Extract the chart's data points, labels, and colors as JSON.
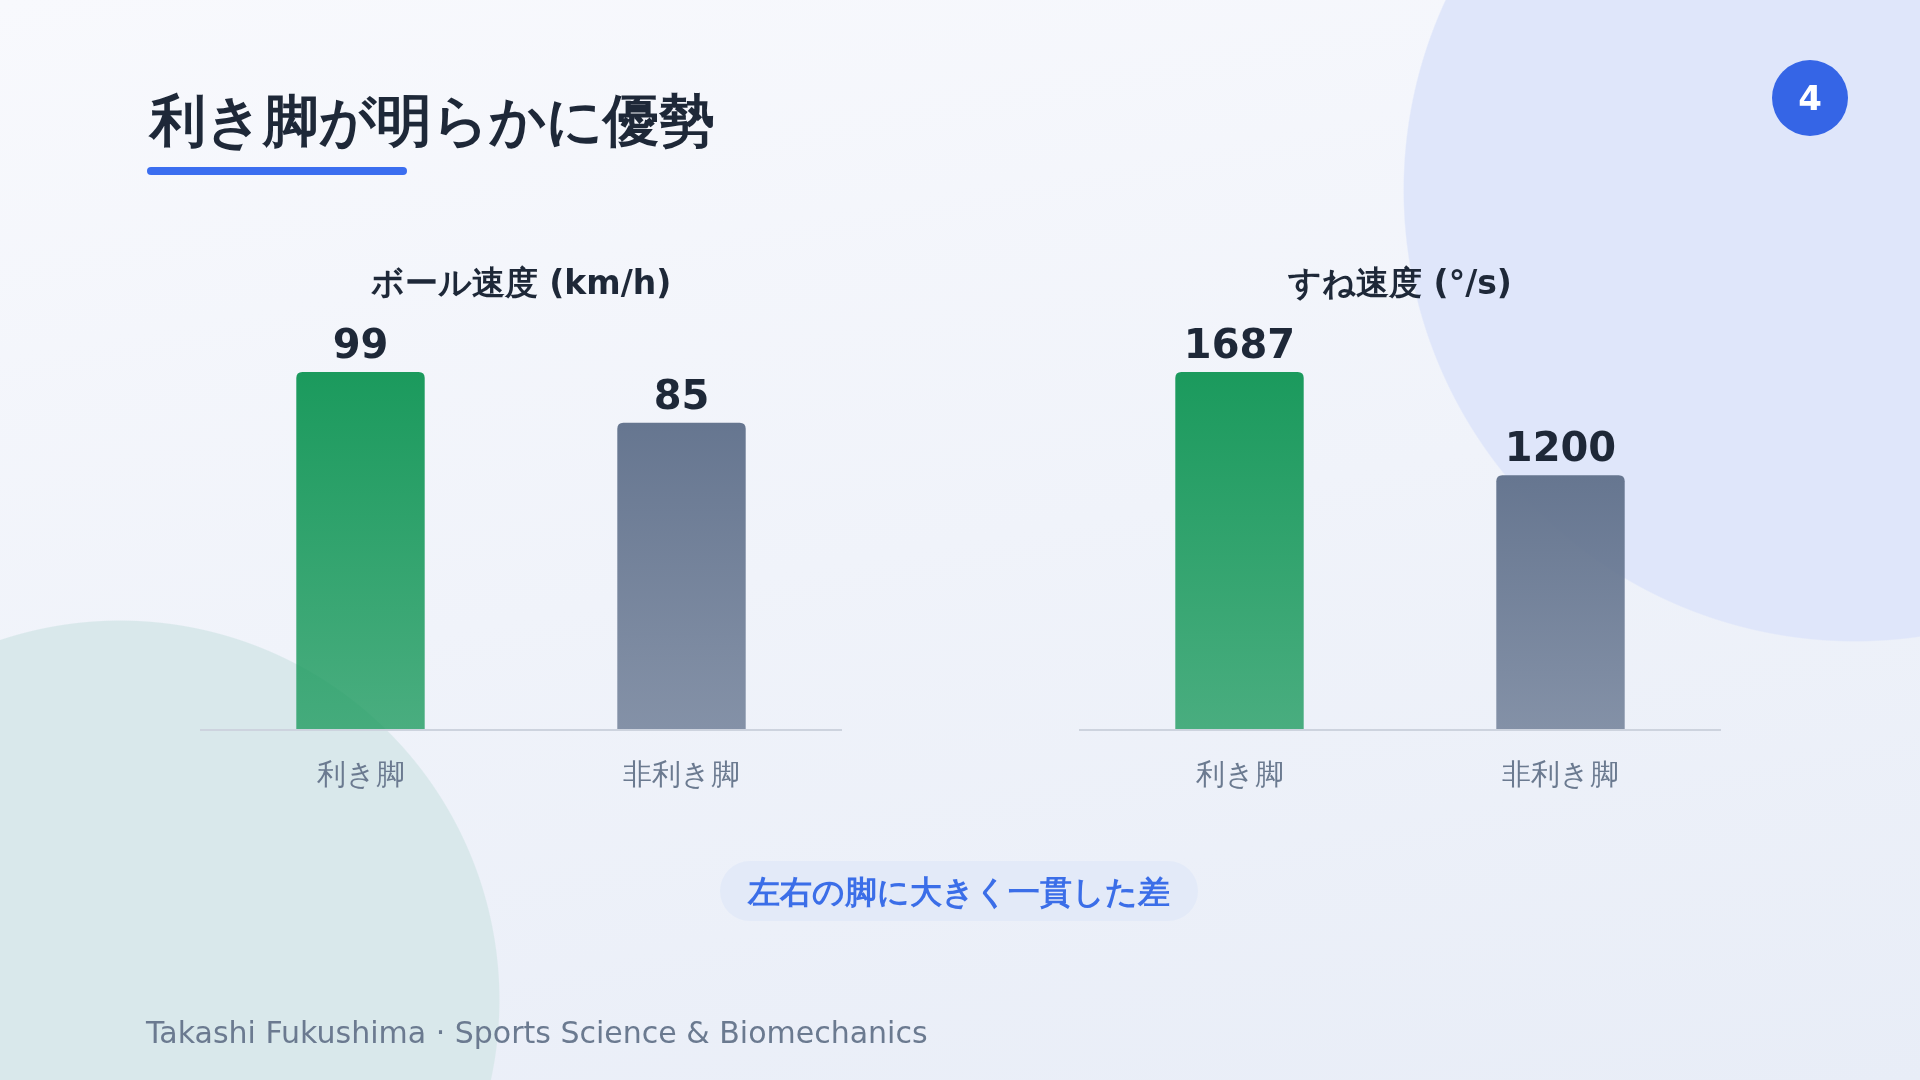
{
  "chart_data": [
    {
      "type": "other",
      "title": "利き脚が明らかに優勢",
      "annotations": [
        "4",
        "左右の脚に大きく一貫した差",
        "Takashi Fukushima · Sports Science & Biomechanics"
      ]
    },
    {
      "type": "bar",
      "title": "ボール速度 (km/h)",
      "categories": [
        "利き脚",
        "非利き脚"
      ],
      "values": [
        99,
        85
      ],
      "colors": [
        "#1b9a5d",
        "#667690"
      ],
      "data_labels": true
    },
    {
      "type": "bar",
      "title": "すね速度 (°/s)",
      "categories": [
        "利き脚",
        "非利き脚"
      ],
      "values": [
        1687,
        1200
      ],
      "colors": [
        "#1b9a5d",
        "#667690"
      ],
      "data_labels": true
    }
  ]
}
